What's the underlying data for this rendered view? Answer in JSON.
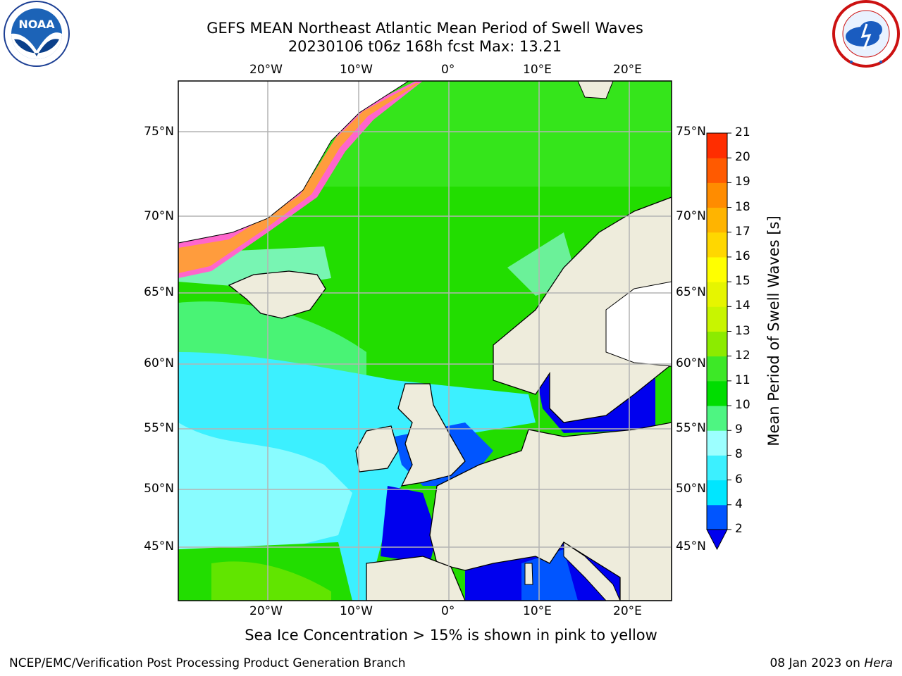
{
  "title": {
    "line1": "GEFS MEAN Northeast Atlantic Mean Period of Swell Waves",
    "line2": "20230106 t06z 168h fcst   Max: 13.21"
  },
  "logos": {
    "noaa_icon": "noaa-logo-icon",
    "nws_icon": "nws-logo-icon"
  },
  "map": {
    "lon_labels": [
      "20°W",
      "10°W",
      "0°",
      "10°E",
      "20°E"
    ],
    "lat_labels_left": [
      "75°N",
      "70°N",
      "65°N",
      "60°N",
      "55°N",
      "50°N",
      "45°N"
    ],
    "lat_labels_right": [
      "75°N",
      "70°N",
      "65°N",
      "60°N",
      "55°N",
      "50°N",
      "45°N"
    ],
    "colors": {
      "land": "#eeecdc",
      "grid": "#b4b4b4",
      "ocean_main": "#22dd00"
    }
  },
  "colorbar": {
    "label": "Mean Period of Swell Waves [s]",
    "ticks": [
      "2",
      "4",
      "6",
      "8",
      "9",
      "10",
      "11",
      "12",
      "13",
      "14",
      "15",
      "16",
      "17",
      "18",
      "19",
      "20",
      "21"
    ],
    "colors": [
      "#0055ff",
      "#00e6ff",
      "#3cf0ff",
      "#9cffff",
      "#4ef582",
      "#00dd00",
      "#3de827",
      "#8ceb00",
      "#c8f500",
      "#e6f500",
      "#ffff00",
      "#ffd700",
      "#ffb400",
      "#ff8c00",
      "#ff5a00",
      "#ff2d00",
      "#ff0000"
    ],
    "under_color": "#0000ee"
  },
  "footer": {
    "note": "Sea Ice Concentration > 15% is shown in pink to yellow",
    "credit": "NCEP/EMC/Verification Post Processing Product Generation Branch",
    "date": "08 Jan 2023 on",
    "host": "Hera"
  }
}
